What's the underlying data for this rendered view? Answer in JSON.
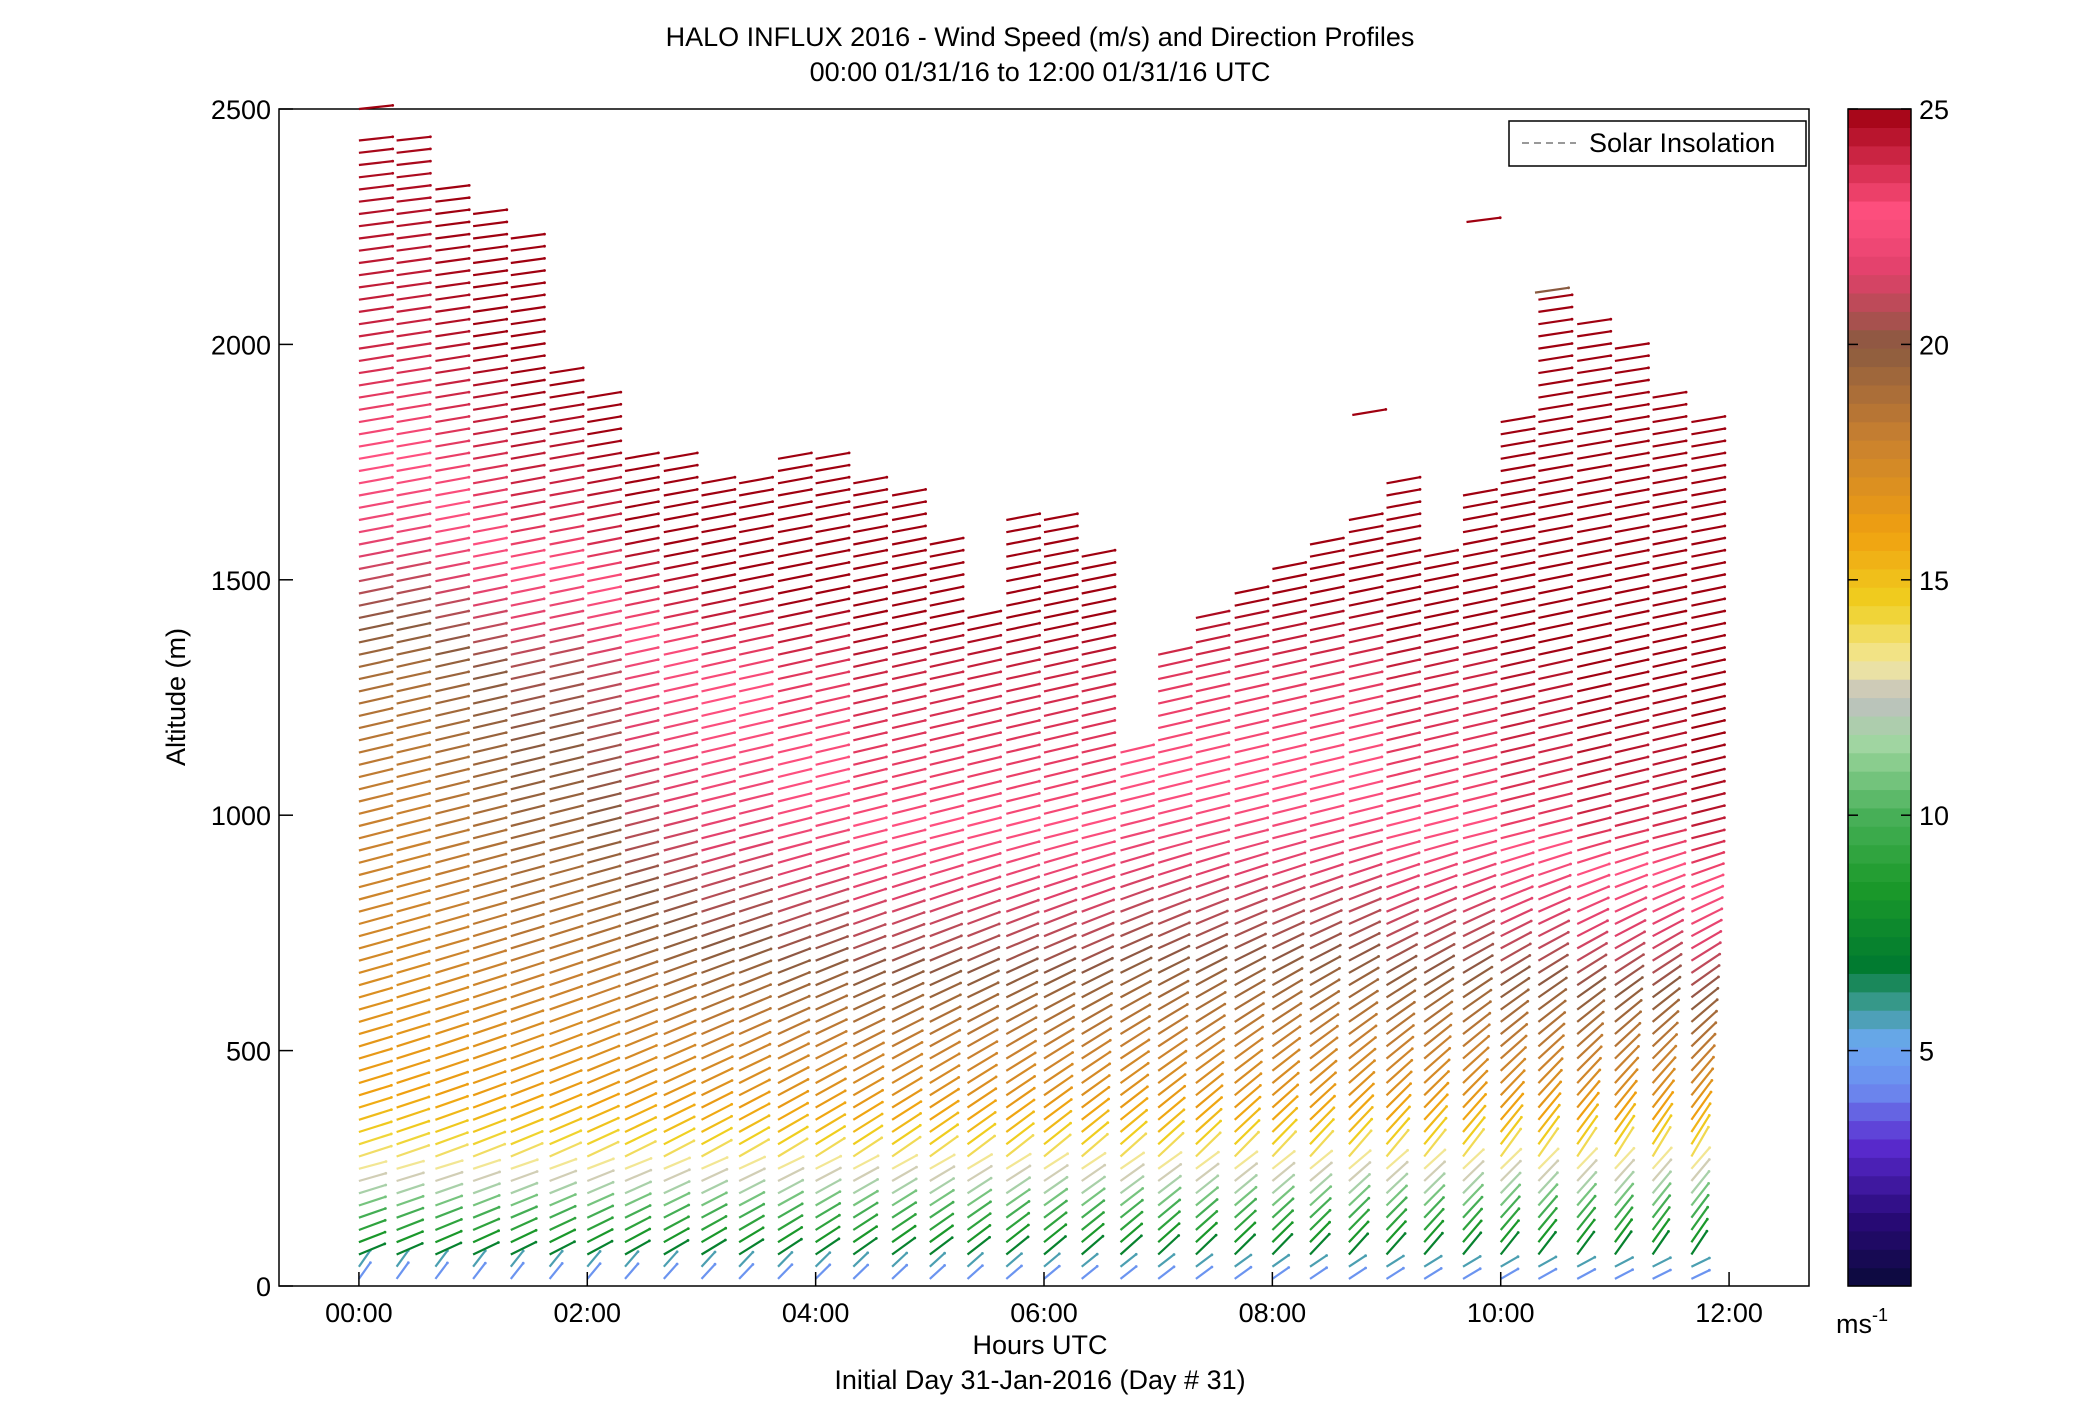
{
  "chart_data": {
    "type": "wind_barb_profile",
    "title": "HALO INFLUX 2016 - Wind Speed (m/s) and Direction Profiles",
    "subtitle": "00:00 01/31/16 to 12:00 01/31/16  UTC",
    "xlabel": "Hours UTC",
    "xlabel2": "Initial Day 31-Jan-2016 (Day # 31)",
    "ylabel": "Altitude (m)",
    "xlim_hours": [
      -0.7,
      12.7
    ],
    "ylim": [
      0,
      2500
    ],
    "x_ticks": [
      {
        "value": 0,
        "label": "00:00"
      },
      {
        "value": 2,
        "label": "02:00"
      },
      {
        "value": 4,
        "label": "04:00"
      },
      {
        "value": 6,
        "label": "06:00"
      },
      {
        "value": 8,
        "label": "08:00"
      },
      {
        "value": 10,
        "label": "10:00"
      },
      {
        "value": 12,
        "label": "12:00"
      }
    ],
    "y_ticks": [
      {
        "value": 0,
        "label": "0"
      },
      {
        "value": 500,
        "label": "500"
      },
      {
        "value": 1000,
        "label": "1000"
      },
      {
        "value": 1500,
        "label": "1500"
      },
      {
        "value": 2000,
        "label": "2000"
      },
      {
        "value": 2500,
        "label": "2500"
      }
    ],
    "legend": {
      "label": "Solar Insolation",
      "style": "dashed",
      "color": "#999999",
      "position": "top-right"
    },
    "colorbar": {
      "min": 0,
      "max": 25,
      "ticks": [
        {
          "value": 5,
          "label": "5"
        },
        {
          "value": 10,
          "label": "10"
        },
        {
          "value": 15,
          "label": "15"
        },
        {
          "value": 20,
          "label": "20"
        },
        {
          "value": 25,
          "label": "25"
        }
      ],
      "unit_base": "ms",
      "unit_exp": "-1",
      "stops": [
        {
          "v": 0,
          "color": "#0a0a3a"
        },
        {
          "v": 1.5,
          "color": "#2a0a7a"
        },
        {
          "v": 3,
          "color": "#5a2acf"
        },
        {
          "v": 4.2,
          "color": "#6c8cf0"
        },
        {
          "v": 5.2,
          "color": "#6aa8f0"
        },
        {
          "v": 6,
          "color": "#3a9a90"
        },
        {
          "v": 6.8,
          "color": "#007a30"
        },
        {
          "v": 8.5,
          "color": "#1c9a2a"
        },
        {
          "v": 10,
          "color": "#48b058"
        },
        {
          "v": 11.5,
          "color": "#9fd6a0"
        },
        {
          "v": 12.5,
          "color": "#c0c0c0"
        },
        {
          "v": 13.2,
          "color": "#f2e8a0"
        },
        {
          "v": 14.5,
          "color": "#f0d020"
        },
        {
          "v": 16,
          "color": "#f0a010"
        },
        {
          "v": 18,
          "color": "#c88030"
        },
        {
          "v": 20,
          "color": "#8a5a40"
        },
        {
          "v": 21.5,
          "color": "#e0406a"
        },
        {
          "v": 22.8,
          "color": "#ff5080"
        },
        {
          "v": 25,
          "color": "#a00010"
        }
      ]
    },
    "profile_times_hours": [
      0.0,
      0.33,
      0.67,
      1.0,
      1.33,
      1.67,
      2.0,
      2.33,
      2.67,
      3.0,
      3.33,
      3.67,
      4.0,
      4.33,
      4.67,
      5.0,
      5.33,
      5.67,
      6.0,
      6.33,
      6.67,
      7.0,
      7.33,
      7.67,
      8.0,
      8.33,
      8.67,
      9.0,
      9.33,
      9.67,
      10.0,
      10.33,
      10.67,
      11.0,
      11.33,
      11.67
    ],
    "profile_top_altitude_m": [
      2450,
      2450,
      2350,
      2300,
      2230,
      1940,
      1900,
      1780,
      1780,
      1730,
      1730,
      1760,
      1780,
      1730,
      1680,
      1590,
      1430,
      1630,
      1640,
      1560,
      1150,
      1360,
      1420,
      1480,
      1540,
      1590,
      1630,
      1730,
      1570,
      1700,
      1860,
      2100,
      2050,
      2010,
      1890,
      1850
    ],
    "speed_at_1000m_by_profile": [
      18,
      18,
      18.5,
      19,
      19.5,
      19.5,
      20,
      21,
      21.5,
      22,
      22,
      22.5,
      22.5,
      23,
      23,
      23,
      23,
      23,
      23,
      23,
      22.5,
      22.5,
      22.5,
      22.5,
      22.5,
      22.5,
      22.5,
      23,
      23,
      23,
      23.5,
      23.5,
      24,
      24,
      24,
      24.5
    ],
    "speed_profile_m_s": [
      {
        "altitude_m": 20,
        "speed": 4.5
      },
      {
        "altitude_m": 80,
        "speed": 8
      },
      {
        "altitude_m": 150,
        "speed": 10
      },
      {
        "altitude_m": 230,
        "speed": 13
      },
      {
        "altitude_m": 400,
        "speed": 16
      },
      {
        "altitude_m": 700,
        "speed": 17.5
      },
      {
        "altitude_m": 1000,
        "speed": 18
      },
      {
        "altitude_m": 1300,
        "speed": 19
      },
      {
        "altitude_m": 1600,
        "speed": 22
      },
      {
        "altitude_m": 2000,
        "speed": 24
      },
      {
        "altitude_m": 2500,
        "speed": 25
      }
    ],
    "isolated_barbs": [
      {
        "time_hours": 0.0,
        "altitude_m": 2500,
        "speed": 25
      },
      {
        "time_hours": 8.7,
        "altitude_m": 1850,
        "speed": 25
      },
      {
        "time_hours": 9.7,
        "altitude_m": 2260,
        "speed": 25
      },
      {
        "time_hours": 10.3,
        "altitude_m": 2110,
        "speed": 20
      }
    ],
    "barb_spacing_m": 26,
    "low_level_direction": "northerly tilt near surface, veering to westerly aloft",
    "upper_level_direction": "westerly to west-southwesterly"
  }
}
